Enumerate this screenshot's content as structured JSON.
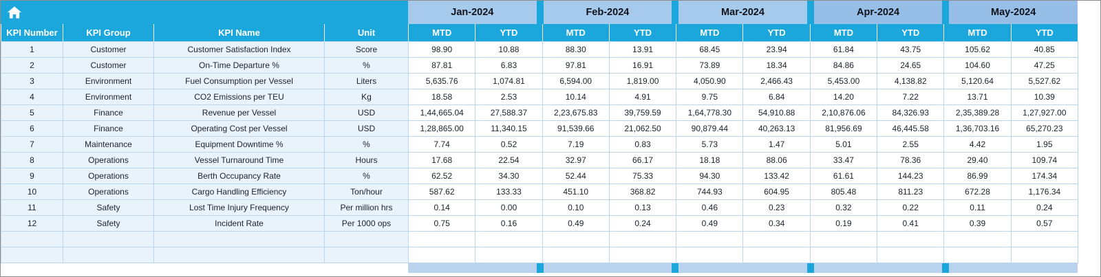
{
  "colors": {
    "teal": "#1BA7DC",
    "month-light": "#A6CAEC",
    "month-dark": "#97BEE7",
    "month-text": "#10131B",
    "header-text": "#FFFFFF",
    "row-tint": "#E8F3FB",
    "cell-bg": "#FFFFFF",
    "grid": "#BCD6EE",
    "text": "#1C212B",
    "partial": "#B9D3EE",
    "frame": "#8C8C8C"
  },
  "icons": {
    "home": "home-icon"
  },
  "header": {
    "left_columns": [
      "KPI Number",
      "KPI Group",
      "KPI Name",
      "Unit"
    ],
    "months": [
      "Jan-2024",
      "Feb-2024",
      "Mar-2024",
      "Apr-2024",
      "May-2024"
    ],
    "sub_columns": [
      "MTD",
      "YTD"
    ]
  },
  "rows": [
    {
      "number": "1",
      "group": "Customer",
      "name": "Customer Satisfaction Index",
      "unit": "Score",
      "values": [
        "98.90",
        "10.88",
        "88.30",
        "13.91",
        "68.45",
        "23.94",
        "61.84",
        "43.75",
        "105.62",
        "40.85"
      ]
    },
    {
      "number": "2",
      "group": "Customer",
      "name": "On-Time Departure %",
      "unit": "%",
      "values": [
        "87.81",
        "6.83",
        "97.81",
        "16.91",
        "73.89",
        "18.34",
        "84.86",
        "24.65",
        "104.60",
        "47.25"
      ]
    },
    {
      "number": "3",
      "group": "Environment",
      "name": "Fuel Consumption per Vessel",
      "unit": "Liters",
      "values": [
        "5,635.76",
        "1,074.81",
        "6,594.00",
        "1,819.00",
        "4,050.90",
        "2,466.43",
        "5,453.00",
        "4,138.82",
        "5,120.64",
        "5,527.62"
      ]
    },
    {
      "number": "4",
      "group": "Environment",
      "name": "CO2 Emissions per TEU",
      "unit": "Kg",
      "values": [
        "18.58",
        "2.53",
        "10.14",
        "4.91",
        "9.75",
        "6.84",
        "14.20",
        "7.22",
        "13.71",
        "10.39"
      ]
    },
    {
      "number": "5",
      "group": "Finance",
      "name": "Revenue per Vessel",
      "unit": "USD",
      "values": [
        "1,44,665.04",
        "27,588.37",
        "2,23,675.83",
        "39,759.59",
        "1,64,778.30",
        "54,910.88",
        "2,10,876.06",
        "84,326.93",
        "2,35,389.28",
        "1,27,927.00"
      ]
    },
    {
      "number": "6",
      "group": "Finance",
      "name": "Operating Cost per Vessel",
      "unit": "USD",
      "values": [
        "1,28,865.00",
        "11,340.15",
        "91,539.66",
        "21,062.50",
        "90,879.44",
        "40,263.13",
        "81,956.69",
        "46,445.58",
        "1,36,703.16",
        "65,270.23"
      ]
    },
    {
      "number": "7",
      "group": "Maintenance",
      "name": "Equipment Downtime %",
      "unit": "%",
      "values": [
        "7.74",
        "0.52",
        "7.19",
        "0.83",
        "5.73",
        "1.47",
        "5.01",
        "2.55",
        "4.42",
        "1.95"
      ]
    },
    {
      "number": "8",
      "group": "Operations",
      "name": "Vessel Turnaround Time",
      "unit": "Hours",
      "values": [
        "17.68",
        "22.54",
        "32.97",
        "66.17",
        "18.18",
        "88.06",
        "33.47",
        "78.36",
        "29.40",
        "109.74"
      ]
    },
    {
      "number": "9",
      "group": "Operations",
      "name": "Berth Occupancy Rate",
      "unit": "%",
      "values": [
        "62.52",
        "34.30",
        "52.44",
        "75.33",
        "94.30",
        "133.42",
        "61.61",
        "144.23",
        "86.99",
        "174.34"
      ]
    },
    {
      "number": "10",
      "group": "Operations",
      "name": "Cargo Handling Efficiency",
      "unit": "Ton/hour",
      "values": [
        "587.62",
        "133.33",
        "451.10",
        "368.82",
        "744.93",
        "604.95",
        "805.48",
        "811.23",
        "672.28",
        "1,176.34"
      ]
    },
    {
      "number": "11",
      "group": "Safety",
      "name": "Lost Time Injury Frequency",
      "unit": "Per million hrs",
      "values": [
        "0.14",
        "0.00",
        "0.10",
        "0.13",
        "0.46",
        "0.23",
        "0.32",
        "0.22",
        "0.11",
        "0.24"
      ]
    },
    {
      "number": "12",
      "group": "Safety",
      "name": "Incident Rate",
      "unit": "Per 1000 ops",
      "values": [
        "0.75",
        "0.16",
        "0.49",
        "0.24",
        "0.49",
        "0.34",
        "0.19",
        "0.41",
        "0.39",
        "0.57"
      ]
    }
  ],
  "empty_row_count": 2
}
